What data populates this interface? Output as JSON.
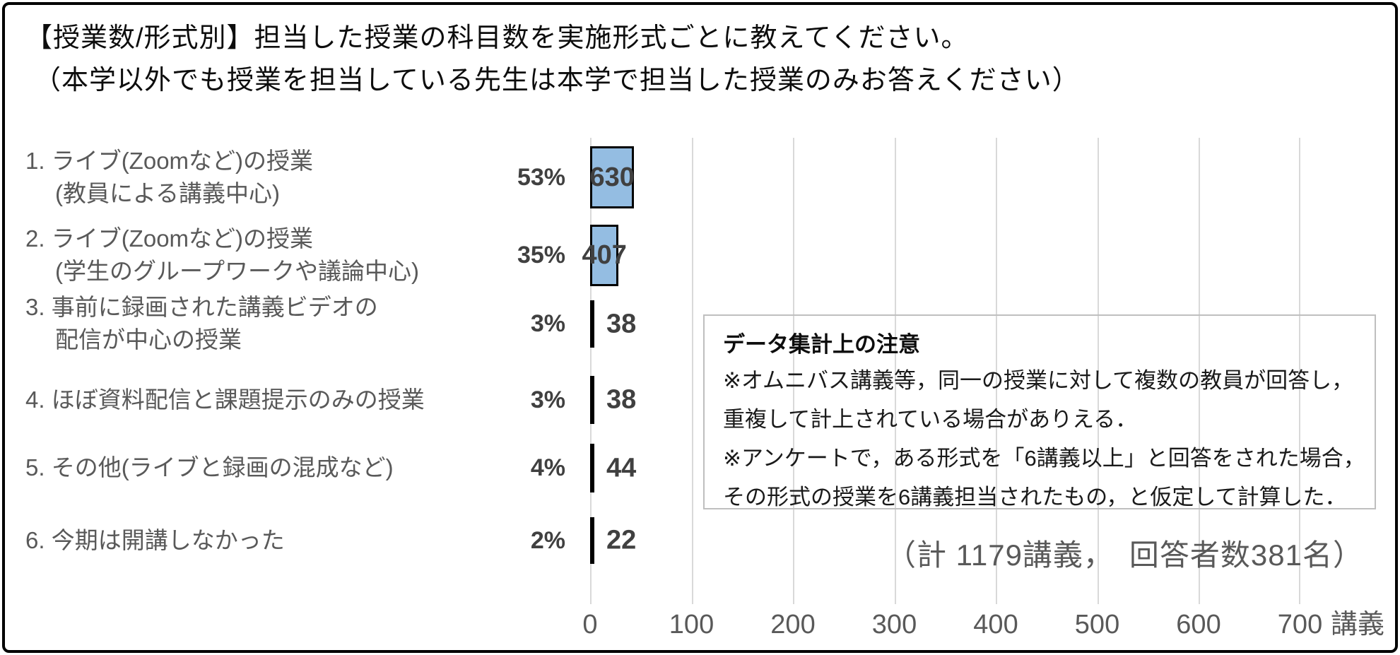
{
  "title": {
    "line1": "【授業数/形式別】担当した授業の科目数を実施形式ごとに教えてください。",
    "line2": "（本学以外でも授業を担当している先生は本学で担当した授業のみお答えください）"
  },
  "chart_data": {
    "type": "bar",
    "orientation": "horizontal",
    "categories": [
      {
        "line1": "1. ライブ(Zoomなど)の授業",
        "line2": "(教員による講義中心)"
      },
      {
        "line1": "2. ライブ(Zoomなど)の授業",
        "line2": "(学生のグループワークや議論中心)"
      },
      {
        "line1": "3. 事前に録画された講義ビデオの",
        "line2": "配信が中心の授業"
      },
      {
        "line1": "4. ほぼ資料配信と課題提示のみの授業",
        "line2": ""
      },
      {
        "line1": "5. その他(ライブと録画の混成など)",
        "line2": ""
      },
      {
        "line1": "6. 今期は開講しなかった",
        "line2": ""
      }
    ],
    "values": [
      630,
      407,
      38,
      38,
      44,
      22
    ],
    "percent_labels": [
      "53%",
      "35%",
      "3%",
      "3%",
      "4%",
      "2%"
    ],
    "x_ticks": [
      "0",
      "100",
      "200",
      "300",
      "400",
      "500",
      "600",
      "700"
    ],
    "x_unit": "講義",
    "xlim": [
      0,
      700
    ],
    "grid": true,
    "legend": "none",
    "colors": {
      "bar_fill": "#94bde2",
      "bar_border": "#000000",
      "gridline": "#d9d9d9",
      "value_label": "#404040",
      "category_label": "#595959",
      "tick_label": "#595959"
    }
  },
  "note_box": {
    "title": "データ集計上の注意",
    "lines": [
      "※オムニバス講義等，同一の授業に対して複数の教員が回答し，",
      "重複して計上されている場合がありえる．",
      "※アンケートで，ある形式を「6講義以上」と回答をされた場合，",
      "その形式の授業を6講義担当されたもの，と仮定して計算した．"
    ]
  },
  "footnote": "（計 1179講義，　回答者数381名）"
}
